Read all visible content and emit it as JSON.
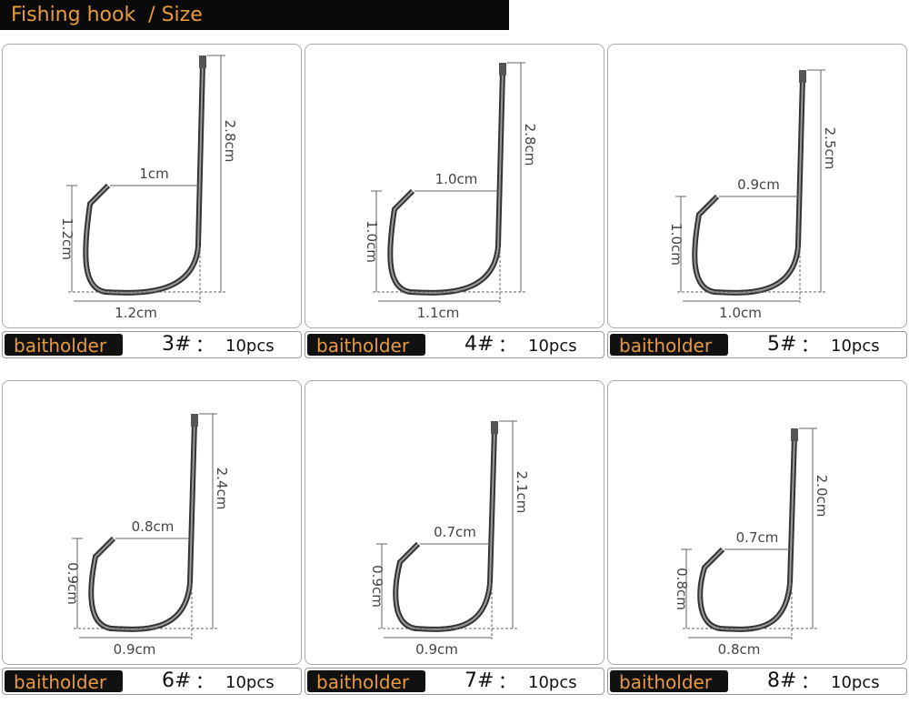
{
  "header": {
    "title": "Fishing hook  / Size"
  },
  "items": [
    {
      "label": "baitholder",
      "size": "3#",
      "sep": "：",
      "qty": "10pcs",
      "gap": "1cm",
      "height": "1.2cm",
      "length": "2.8cm",
      "width": "1.2cm"
    },
    {
      "label": "baitholder",
      "size": "4#",
      "sep": "：",
      "qty": "10pcs",
      "gap": "1.0cm",
      "height": "1.0cm",
      "length": "2.8cm",
      "width": "1.1cm"
    },
    {
      "label": "baitholder",
      "size": "5#",
      "sep": "：",
      "qty": "10pcs",
      "gap": "0.9cm",
      "height": "1.0cm",
      "length": "2.5cm",
      "width": "1.0cm"
    },
    {
      "label": "baitholder",
      "size": "6#",
      "sep": "：",
      "qty": "10pcs",
      "gap": "0.8cm",
      "height": "0.9cm",
      "length": "2.4cm",
      "width": "0.9cm"
    },
    {
      "label": "baitholder",
      "size": "7#",
      "sep": "：",
      "qty": "10pcs",
      "gap": "0.7cm",
      "height": "0.9cm",
      "length": "2.1cm",
      "width": "0.9cm"
    },
    {
      "label": "baitholder",
      "size": "8#",
      "sep": "：",
      "qty": "10pcs",
      "gap": "0.7cm",
      "height": "0.8cm",
      "length": "2.0cm",
      "width": "0.8cm"
    }
  ]
}
